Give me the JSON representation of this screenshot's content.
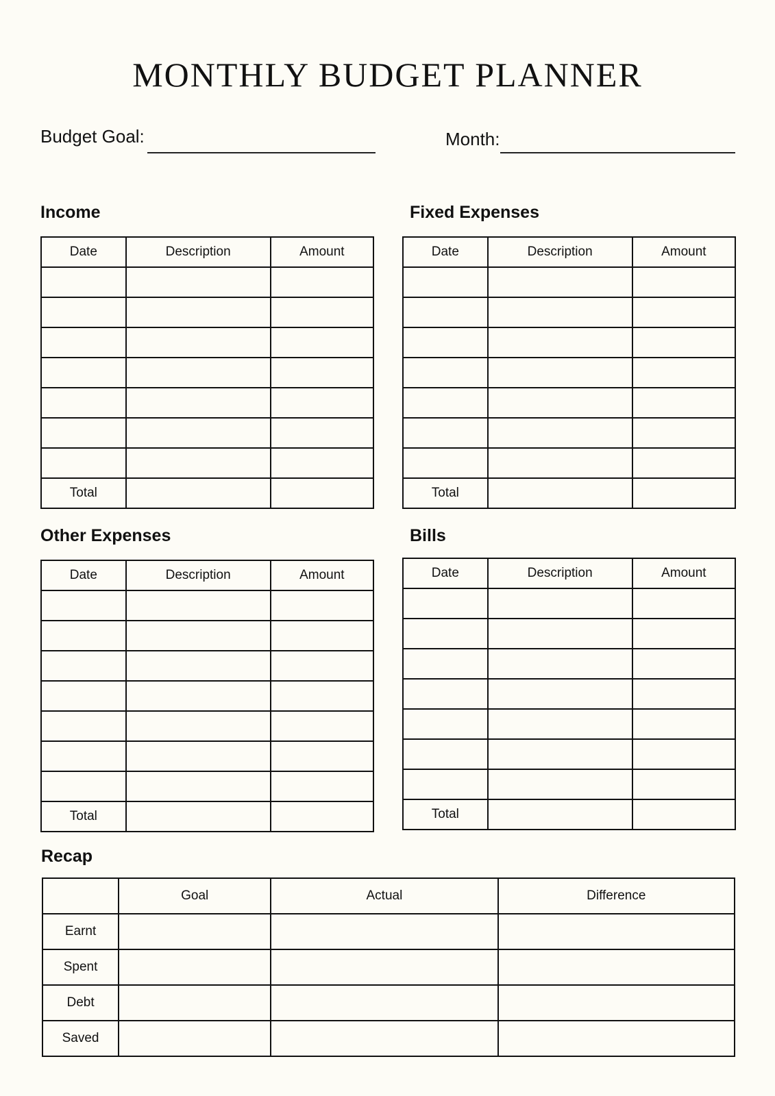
{
  "title": "MONTHLY BUDGET PLANNER",
  "budget_goal_label": "Budget Goal:",
  "month_label": "Month:",
  "sections": [
    {
      "heading": "Income",
      "columns": [
        "Date",
        "Description",
        "Amount"
      ],
      "empty_rows": 7,
      "total_label": "Total"
    },
    {
      "heading": "Fixed Expenses",
      "columns": [
        "Date",
        "Description",
        "Amount"
      ],
      "empty_rows": 7,
      "total_label": "Total"
    },
    {
      "heading": "Other Expenses",
      "columns": [
        "Date",
        "Description",
        "Amount"
      ],
      "empty_rows": 7,
      "total_label": "Total"
    },
    {
      "heading": "Bills",
      "columns": [
        "Date",
        "Description",
        "Amount"
      ],
      "empty_rows": 7,
      "total_label": "Total"
    }
  ],
  "recap": {
    "heading": "Recap",
    "columns": [
      "",
      "Goal",
      "Actual",
      "Difference"
    ],
    "rows": [
      "Earnt",
      "Spent",
      "Debt",
      "Saved"
    ]
  }
}
